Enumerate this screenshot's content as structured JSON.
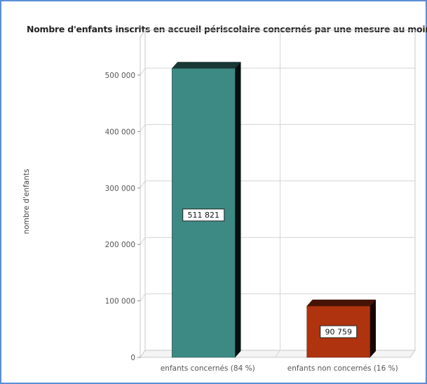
{
  "chart_data": {
    "type": "bar",
    "title": "Nombre d'enfants inscrits en accueil périscolaire concernés par une mesure au moins",
    "xlabel": "",
    "ylabel": "nombre d'enfants",
    "categories": [
      "enfants concernés (84 %)",
      "enfants non concernés (16 %)"
    ],
    "values": [
      511821,
      90759
    ],
    "data_labels": [
      "511 821",
      "90 759"
    ],
    "colors": [
      "#3d8a84",
      "#b0330f"
    ],
    "ylim": [
      0,
      500000
    ],
    "y_ticks": [
      0,
      100000,
      200000,
      300000,
      400000,
      500000
    ],
    "y_tick_labels": [
      "0",
      "100 000",
      "200 000",
      "300 000",
      "400 000",
      "500 000"
    ],
    "grid": true,
    "style": "3d"
  }
}
